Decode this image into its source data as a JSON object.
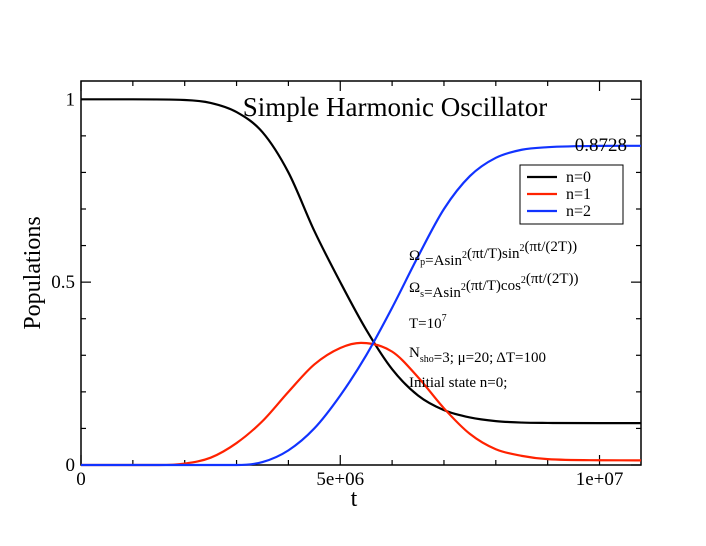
{
  "chart_data": {
    "type": "line",
    "title": "Simple Harmonic Oscillator",
    "xlabel": "t",
    "ylabel": "Populations",
    "xlim": [
      0,
      10800000
    ],
    "ylim": [
      0,
      1.05
    ],
    "x_ticks": [
      {
        "value": 0,
        "label": "0"
      },
      {
        "value": 5000000,
        "label": "5e+06"
      },
      {
        "value": 10000000,
        "label": "1e+07"
      }
    ],
    "y_ticks": [
      {
        "value": 0,
        "label": "0"
      },
      {
        "value": 0.5,
        "label": "0.5"
      },
      {
        "value": 1,
        "label": "1"
      }
    ],
    "final_value_label": "0.8728",
    "legend_position": "top-right",
    "grid": false,
    "series": [
      {
        "name": "n=0",
        "color": "#000000",
        "x": [
          0,
          1000000,
          2000000,
          2500000,
          3000000,
          3500000,
          4000000,
          4500000,
          5000000,
          5500000,
          6000000,
          6500000,
          7000000,
          7500000,
          8000000,
          8500000,
          9000000,
          10000000,
          10800000
        ],
        "y": [
          1.0,
          1.0,
          0.998,
          0.99,
          0.965,
          0.91,
          0.8,
          0.64,
          0.5,
          0.37,
          0.262,
          0.19,
          0.15,
          0.13,
          0.12,
          0.116,
          0.115,
          0.1145,
          0.1145
        ]
      },
      {
        "name": "n=1",
        "color": "#ff2200",
        "x": [
          0,
          1500000,
          2000000,
          2500000,
          3000000,
          3500000,
          4000000,
          4500000,
          5000000,
          5400000,
          6000000,
          6500000,
          7000000,
          7500000,
          8000000,
          8500000,
          9000000,
          10000000,
          10800000
        ],
        "y": [
          0.0,
          0.0,
          0.004,
          0.02,
          0.06,
          0.12,
          0.2,
          0.275,
          0.32,
          0.334,
          0.31,
          0.24,
          0.155,
          0.085,
          0.043,
          0.025,
          0.016,
          0.013,
          0.0127
        ]
      },
      {
        "name": "n=2",
        "color": "#1133ff",
        "x": [
          0,
          3000000,
          3500000,
          4000000,
          4500000,
          5000000,
          5500000,
          6000000,
          6500000,
          7000000,
          7500000,
          8000000,
          8500000,
          9000000,
          10000000,
          10800000
        ],
        "y": [
          0.0,
          0.0,
          0.008,
          0.04,
          0.1,
          0.19,
          0.3,
          0.43,
          0.57,
          0.7,
          0.79,
          0.84,
          0.862,
          0.869,
          0.8725,
          0.8728
        ]
      }
    ],
    "annotations": [
      {
        "id": "omega-p",
        "parts": [
          [
            "Ω",
            ""
          ],
          [
            "p",
            "sub"
          ],
          [
            "=Asin",
            ""
          ],
          [
            "2",
            "sup"
          ],
          [
            "(πt/T)sin",
            ""
          ],
          [
            "2",
            "sup"
          ],
          [
            "(πt/(2T))",
            ""
          ]
        ]
      },
      {
        "id": "omega-s",
        "parts": [
          [
            "Ω",
            ""
          ],
          [
            "s",
            "sub"
          ],
          [
            "=Asin",
            ""
          ],
          [
            "2",
            "sup"
          ],
          [
            "(πt/T)cos",
            ""
          ],
          [
            "2",
            "sup"
          ],
          [
            "(πt/(2T))",
            ""
          ]
        ]
      },
      {
        "id": "period",
        "parts": [
          [
            "T=10",
            ""
          ],
          [
            "7",
            "sup"
          ]
        ]
      },
      {
        "id": "params",
        "parts": [
          [
            "N",
            ""
          ],
          [
            "sho",
            "sub"
          ],
          [
            "=3;  μ=20; ΔT=100",
            ""
          ]
        ]
      },
      {
        "id": "initial-state",
        "parts": [
          [
            "Initial state n=0;",
            ""
          ]
        ]
      }
    ]
  }
}
